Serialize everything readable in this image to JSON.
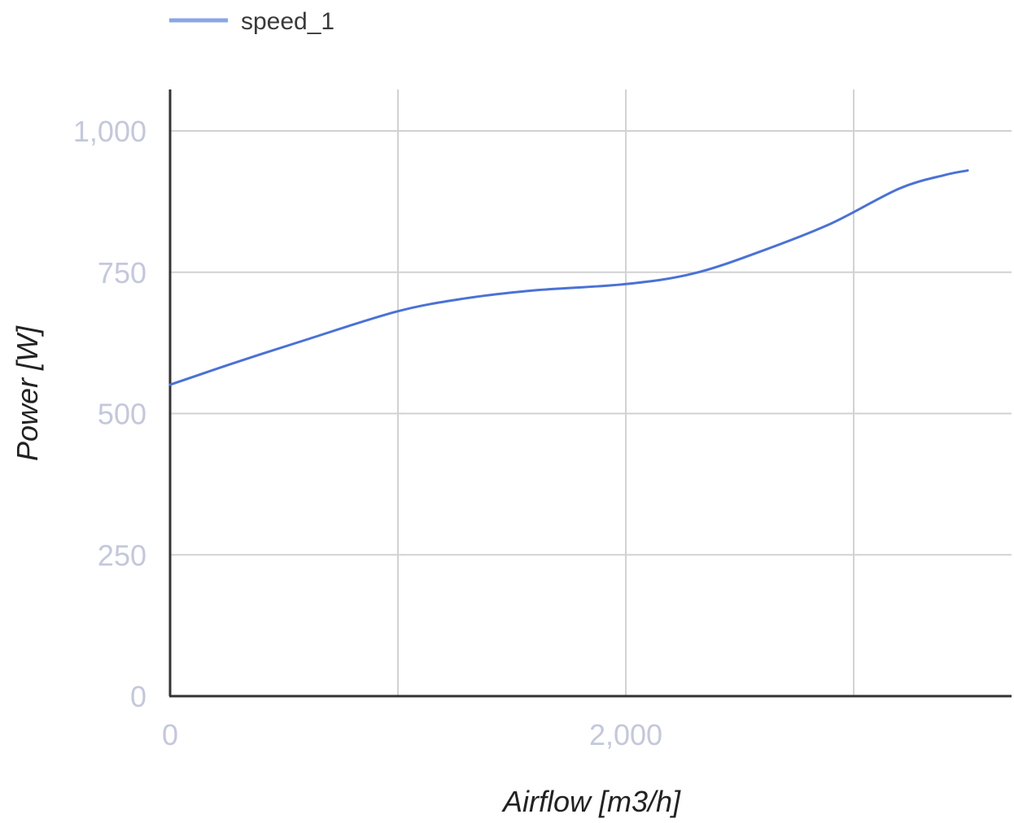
{
  "chart_data": {
    "type": "line",
    "xlabel": "Airflow [m3/h]",
    "ylabel": "Power [W]",
    "xlim": [
      0,
      3700
    ],
    "ylim": [
      0,
      1000
    ],
    "x_ticks": [
      {
        "value": 0,
        "label": "0"
      },
      {
        "value": 1000,
        "label": ""
      },
      {
        "value": 2000,
        "label": "2,000"
      },
      {
        "value": 3000,
        "label": ""
      }
    ],
    "y_ticks": [
      {
        "value": 0,
        "label": "0"
      },
      {
        "value": 250,
        "label": "250"
      },
      {
        "value": 500,
        "label": "500"
      },
      {
        "value": 750,
        "label": "750"
      },
      {
        "value": 1000,
        "label": "1,000"
      }
    ],
    "grid": true,
    "legend_position": "top-left",
    "series": [
      {
        "name": "speed_1",
        "color": "#4a72d6",
        "points": [
          {
            "x": 0,
            "y": 551
          },
          {
            "x": 300,
            "y": 592
          },
          {
            "x": 600,
            "y": 631
          },
          {
            "x": 1000,
            "y": 681
          },
          {
            "x": 1300,
            "y": 704
          },
          {
            "x": 1600,
            "y": 718
          },
          {
            "x": 2000,
            "y": 729
          },
          {
            "x": 2300,
            "y": 748
          },
          {
            "x": 2600,
            "y": 788
          },
          {
            "x": 2900,
            "y": 836
          },
          {
            "x": 3200,
            "y": 898
          },
          {
            "x": 3400,
            "y": 922
          },
          {
            "x": 3500,
            "y": 930
          }
        ]
      }
    ]
  }
}
